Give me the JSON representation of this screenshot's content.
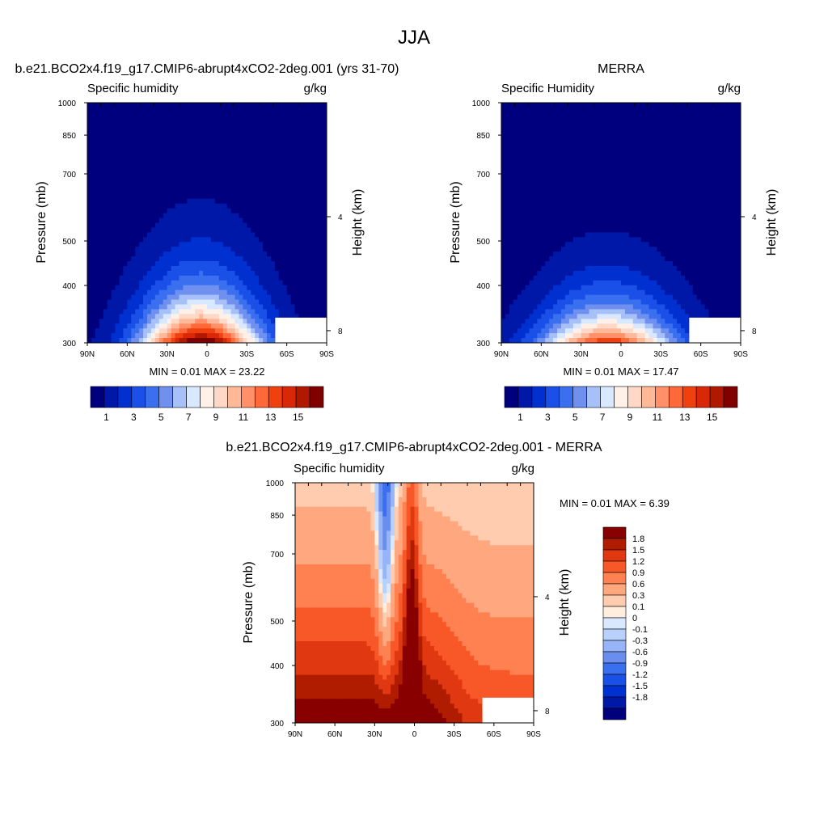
{
  "page_title": "JJA",
  "panels": [
    {
      "title": "b.e21.BCO2x4.f19_g17.CMIP6-abrupt4xCO2-2deg.001 (yrs 31-70)",
      "left_label": "Specific humidity",
      "right_label": "g/kg",
      "ylabel": "Pressure (mb)",
      "ylabel_right": "Height (km)",
      "min_max": "MIN =   0.01  MAX =  23.22"
    },
    {
      "title": "MERRA",
      "left_label": "Specific Humidity",
      "right_label": "g/kg",
      "ylabel": "Pressure (mb)",
      "ylabel_right": "Height (km)",
      "min_max": "MIN =   0.01  MAX =  17.47"
    },
    {
      "title": "b.e21.BCO2x4.f19_g17.CMIP6-abrupt4xCO2-2deg.001 - MERRA",
      "left_label": "Specific humidity",
      "right_label": "g/kg",
      "ylabel": "Pressure (mb)",
      "ylabel_right": "Height (km)",
      "min_max": "MIN =   0.01  MAX =   6.39"
    }
  ],
  "colors": {
    "abs_levels": [
      "#00007f",
      "#0018a8",
      "#0030d0",
      "#1a50e8",
      "#3a70f0",
      "#7090f0",
      "#a8c0f8",
      "#d8e8ff",
      "#fff0e8",
      "#ffd8c8",
      "#ffb898",
      "#ff9068",
      "#ff6838",
      "#f04010",
      "#d82808",
      "#b01800",
      "#800000"
    ],
    "diff_levels": [
      "#00007f",
      "#0018a8",
      "#0030d0",
      "#1a50e8",
      "#3a70f0",
      "#6a8ef0",
      "#98b4f8",
      "#b8d0fc",
      "#d8e8ff",
      "#ffeedd",
      "#ffccb0",
      "#ffa880",
      "#ff8050",
      "#f85828",
      "#e03810",
      "#b01c00",
      "#880000"
    ]
  },
  "chart_data": [
    {
      "type": "heatmap",
      "title": "b.e21.BCO2x4.f19_g17.CMIP6-abrupt4xCO2-2deg.001 (yrs 31-70)",
      "xlabel": "",
      "ylabel": "Pressure (mb)",
      "ylabel_right": "Height (km)",
      "x_ticks": [
        "90N",
        "60N",
        "30N",
        "0",
        "30S",
        "60S",
        "90S"
      ],
      "y_ticks": [
        300,
        400,
        500,
        700,
        850,
        1000
      ],
      "right_ticks": [
        8,
        4
      ],
      "xlim": [
        90,
        -90
      ],
      "ylim": [
        1000,
        300
      ],
      "y_scale": "log",
      "colorbar_labels": [
        "1",
        "3",
        "5",
        "7",
        "9",
        "11",
        "13",
        "15"
      ],
      "min": 0.01,
      "max": 23.22,
      "units": "g/kg",
      "peak_lat": 5,
      "peak_value": 17.5,
      "width_deg": 32,
      "scale_height": 0.72
    },
    {
      "type": "heatmap",
      "title": "MERRA",
      "xlabel": "",
      "ylabel": "Pressure (mb)",
      "ylabel_right": "Height (km)",
      "x_ticks": [
        "90N",
        "60N",
        "30N",
        "0",
        "30S",
        "60S",
        "90S"
      ],
      "y_ticks": [
        300,
        400,
        500,
        700,
        850,
        1000
      ],
      "right_ticks": [
        8,
        4
      ],
      "xlim": [
        90,
        -90
      ],
      "ylim": [
        1000,
        300
      ],
      "y_scale": "log",
      "colorbar_labels": [
        "1",
        "3",
        "5",
        "7",
        "9",
        "11",
        "13",
        "15"
      ],
      "min": 0.01,
      "max": 17.47,
      "units": "g/kg",
      "peak_lat": 10,
      "peak_value": 14,
      "width_deg": 36,
      "scale_height": 0.6
    },
    {
      "type": "heatmap",
      "title": "b.e21.BCO2x4.f19_g17.CMIP6-abrupt4xCO2-2deg.001 - MERRA",
      "xlabel": "",
      "ylabel": "Pressure (mb)",
      "ylabel_right": "Height (km)",
      "x_ticks": [
        "90N",
        "60N",
        "30N",
        "0",
        "30S",
        "60S",
        "90S"
      ],
      "y_ticks": [
        300,
        400,
        500,
        700,
        850,
        1000
      ],
      "right_ticks": [
        8,
        4
      ],
      "xlim": [
        90,
        -90
      ],
      "ylim": [
        1000,
        300
      ],
      "y_scale": "log",
      "colorbar_labels": [
        "1.8",
        "1.5",
        "1.2",
        "0.9",
        "0.6",
        "0.3",
        "0.1",
        "0",
        "-0.1",
        "-0.3",
        "-0.6",
        "-0.9",
        "-1.2",
        "-1.5",
        "-1.8"
      ],
      "min": 0.01,
      "max": 6.39,
      "units": "g/kg"
    }
  ]
}
